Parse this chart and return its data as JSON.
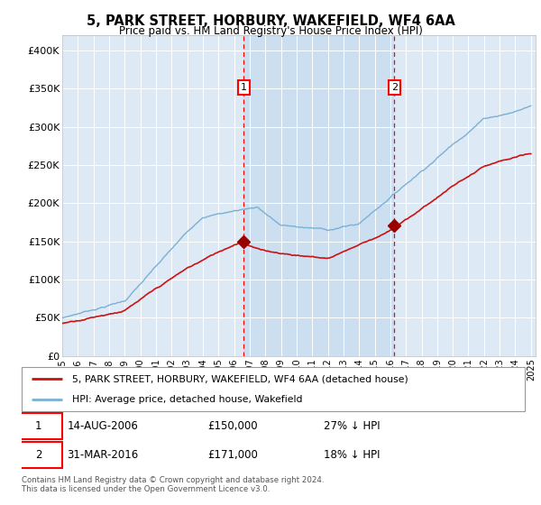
{
  "title": "5, PARK STREET, HORBURY, WAKEFIELD, WF4 6AA",
  "subtitle": "Price paid vs. HM Land Registry's House Price Index (HPI)",
  "hpi_color": "#7ab0d4",
  "price_color": "#cc1111",
  "bg_color": "#ddeaf5",
  "shade_color": "#c8ddf0",
  "vline1_year": 2006.62,
  "vline2_year": 2016.25,
  "sale1_price_val": 150000,
  "sale2_price_val": 171000,
  "legend1": "5, PARK STREET, HORBURY, WAKEFIELD, WF4 6AA (detached house)",
  "legend2": "HPI: Average price, detached house, Wakefield",
  "sale1_date": "14-AUG-2006",
  "sale1_price": "£150,000",
  "sale1_note": "27% ↓ HPI",
  "sale2_date": "31-MAR-2016",
  "sale2_price": "£171,000",
  "sale2_note": "18% ↓ HPI",
  "footer": "Contains HM Land Registry data © Crown copyright and database right 2024.\nThis data is licensed under the Open Government Licence v3.0.",
  "ylim": [
    0,
    420000
  ],
  "yticks": [
    0,
    50000,
    100000,
    150000,
    200000,
    250000,
    300000,
    350000,
    400000
  ],
  "ylabels": [
    "£0",
    "£50K",
    "£100K",
    "£150K",
    "£200K",
    "£250K",
    "£300K",
    "£350K",
    "£400K"
  ]
}
